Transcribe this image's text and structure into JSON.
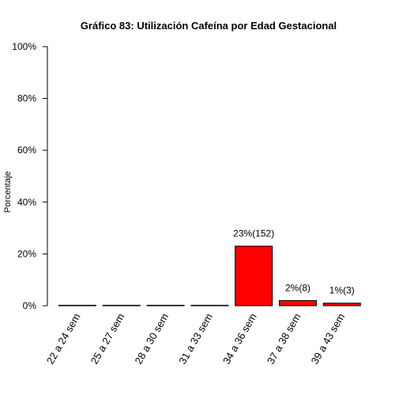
{
  "chart_data": {
    "type": "bar",
    "title": "Gráfico 83: Utilización Cafeína por  Edad Gestacional",
    "ylabel": "Porcentaje",
    "xlabel": "",
    "ylim": [
      0,
      100
    ],
    "y_ticks": [
      "0%",
      "20%",
      "40%",
      "60%",
      "80%",
      "100%"
    ],
    "y_tick_values": [
      0,
      20,
      40,
      60,
      80,
      100
    ],
    "categories": [
      "22 a 24 sem",
      "25 a 27 sem",
      "28 a 30 sem",
      "31 a 33 sem",
      "34 a 36 sem",
      "37 a 38 sem",
      "39 a 43 sem"
    ],
    "values": [
      0,
      0,
      0,
      0,
      23,
      2,
      1
    ],
    "data_labels": [
      "",
      "",
      "",
      "",
      "23%(152)",
      "2%(8)",
      "1%(3)"
    ],
    "bar_color": "#ff0000",
    "bar_border": "#000000",
    "grid": false,
    "legend": "none"
  }
}
